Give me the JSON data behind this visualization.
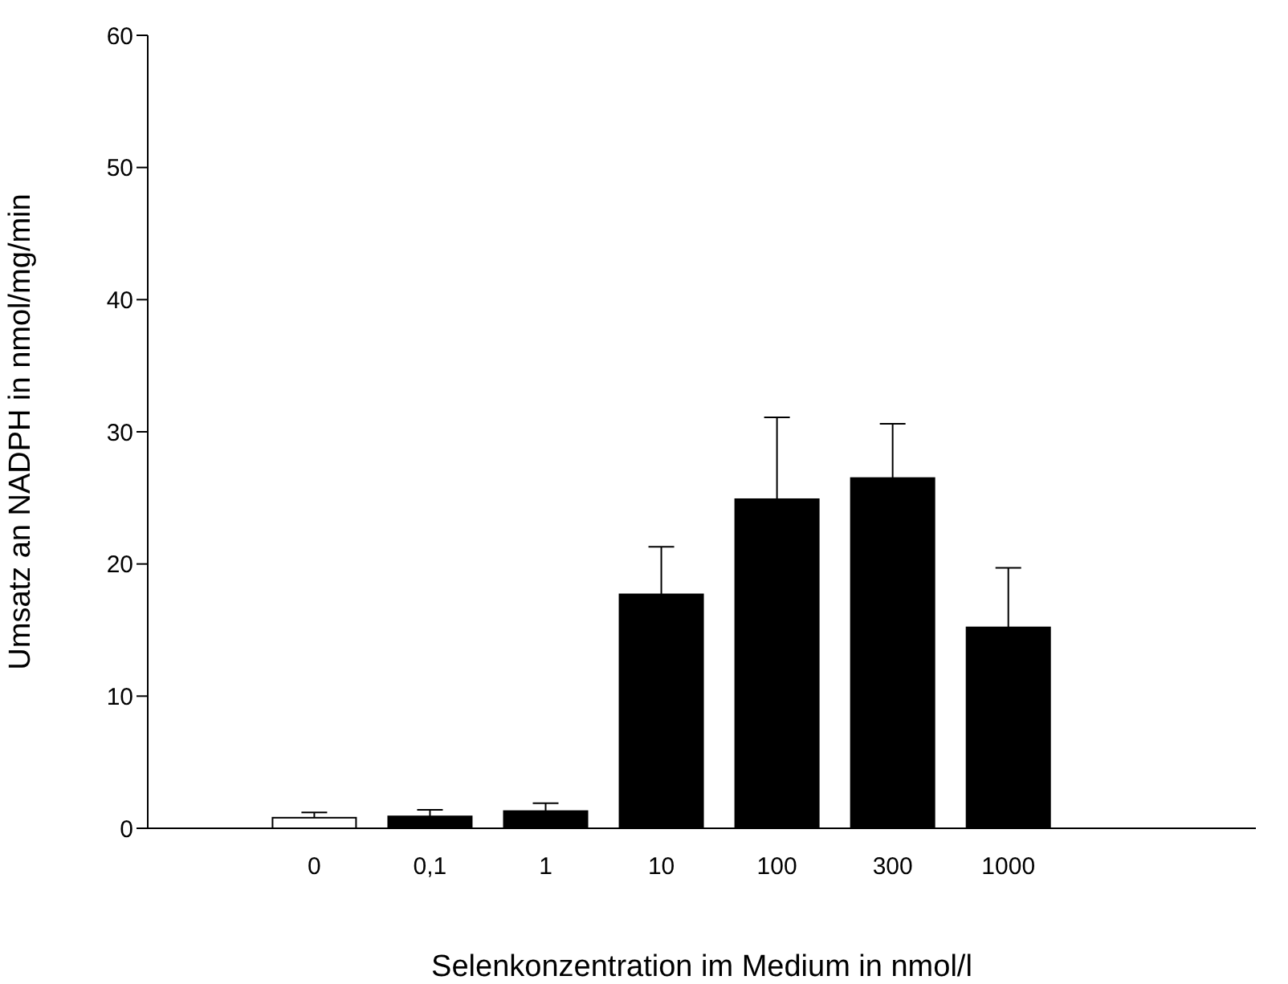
{
  "chart_data": {
    "type": "bar",
    "xlabel": "Selenkonzentration im Medium in nmol/l",
    "ylabel": "Umsatz an NADPH in nmol/mg/min",
    "categories": [
      "0",
      "0,1",
      "1",
      "10",
      "100",
      "300",
      "1000"
    ],
    "values": [
      0.8,
      0.9,
      1.3,
      17.7,
      24.9,
      26.5,
      15.2
    ],
    "colors": [
      "#ffffff",
      "#000000",
      "#000000",
      "#000000",
      "#000000",
      "#000000",
      "#000000"
    ],
    "errors": [
      [
        0.8,
        1.2
      ],
      [
        0.9,
        1.4
      ],
      [
        1.3,
        1.9
      ],
      [
        17.7,
        21.3
      ],
      [
        24.9,
        31.1
      ],
      [
        26.5,
        30.6
      ],
      [
        15.2,
        19.7
      ]
    ],
    "ylim": [
      0,
      60
    ],
    "yticks": [
      0,
      10,
      20,
      30,
      40,
      50,
      60
    ],
    "grid": false,
    "legend": false
  }
}
